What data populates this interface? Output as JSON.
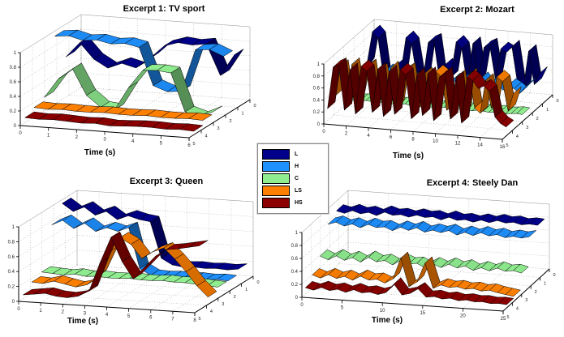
{
  "legend": {
    "entries": [
      {
        "label": "L",
        "color": "#00008B"
      },
      {
        "label": "H",
        "color": "#1E90FF"
      },
      {
        "label": "C",
        "color": "#90EE90"
      },
      {
        "label": "LS",
        "color": "#FF8000"
      },
      {
        "label": "HS",
        "color": "#8B0000"
      }
    ]
  },
  "chart_data": [
    {
      "type": "ribbon3d",
      "title": "Excerpt 1: TV sport",
      "xlabel": "Time (s)",
      "xlim": [
        0,
        6
      ],
      "zlim": [
        0,
        1
      ],
      "x_ticks": [
        0,
        1,
        2,
        3,
        4,
        5,
        6
      ],
      "z_ticks": [
        0,
        0.2,
        0.4,
        0.6,
        0.8,
        1
      ],
      "depth_ticks": [
        0,
        1,
        2,
        3,
        4,
        5
      ],
      "series": [
        {
          "name": "L",
          "values": [
            0.55,
            0.76,
            0.55,
            0.44,
            0.52,
            0.47,
            0.62,
            0.8,
            0.86,
            0.84,
            0.87,
            0.45,
            0.75
          ]
        },
        {
          "name": "H",
          "values": [
            0.93,
            0.95,
            0.9,
            0.92,
            0.88,
            0.9,
            0.86,
            0.35,
            0.28,
            0.3,
            0.88,
            0.9,
            0.82
          ]
        },
        {
          "name": "C",
          "values": [
            0.18,
            0.45,
            0.6,
            0.25,
            0.1,
            0.08,
            0.4,
            0.65,
            0.66,
            0.64,
            0.12,
            0.06,
            0.15
          ]
        },
        {
          "name": "LS",
          "values": [
            0.13,
            0.12,
            0.13,
            0.12,
            0.12,
            0.13,
            0.12,
            0.12,
            0.13,
            0.12,
            0.12,
            0.13,
            0.12
          ]
        },
        {
          "name": "HS",
          "values": [
            0.07,
            0.06,
            0.07,
            0.06,
            0.05,
            0.06,
            0.04,
            0.05,
            0.06,
            0.06,
            0.05,
            0.06,
            0.05
          ]
        }
      ]
    },
    {
      "type": "ribbon3d",
      "title": "Excerpt 2: Mozart",
      "xlabel": "Time (s)",
      "xlim": [
        0,
        16
      ],
      "zlim": [
        0,
        1
      ],
      "x_ticks": [
        0,
        2,
        4,
        6,
        8,
        10,
        12,
        14,
        16
      ],
      "z_ticks": [
        0,
        0.2,
        0.4,
        0.6,
        0.8,
        1
      ],
      "depth_ticks": [
        0,
        1,
        2,
        3,
        4,
        5
      ],
      "series": [
        {
          "name": "L",
          "values": [
            0.3,
            0.45,
            1.0,
            0.9,
            0.25,
            0.2,
            0.45,
            0.3,
            0.95,
            0.85,
            0.3,
            0.25,
            0.9,
            0.95,
            0.3,
            0.55,
            0.35,
            0.95,
            0.85,
            0.25,
            0.95,
            0.35,
            0.9,
            0.95,
            0.4,
            0.9,
            0.85,
            0.95,
            0.35,
            0.25,
            0.9,
            0.35,
            0.55
          ]
        },
        {
          "name": "H",
          "values": [
            0.45,
            0.38,
            0.5,
            0.35,
            0.45,
            0.4,
            0.52,
            0.33,
            0.46,
            0.5,
            0.38,
            0.45,
            0.33,
            0.5,
            0.44,
            0.38,
            0.52,
            0.35,
            0.46,
            0.4,
            0.5,
            0.44,
            0.35,
            0.52,
            0.4,
            0.46,
            0.5,
            0.36,
            0.45,
            0.4,
            0.33,
            0.45,
            0.52
          ]
        },
        {
          "name": "C",
          "values": [
            0.12,
            0.13,
            0.11,
            0.12,
            0.13,
            0.12,
            0.11,
            0.13,
            0.12,
            0.11,
            0.12,
            0.13,
            0.11,
            0.12,
            0.13,
            0.12,
            0.11,
            0.12,
            0.13,
            0.11,
            0.12,
            0.13,
            0.12,
            0.11,
            0.13,
            0.12,
            0.11,
            0.12,
            0.13,
            0.11,
            0.12,
            0.13,
            0.12
          ]
        },
        {
          "name": "LS",
          "values": [
            0.3,
            0.8,
            0.2,
            0.85,
            0.3,
            0.78,
            0.85,
            0.22,
            0.8,
            0.32,
            0.85,
            0.2,
            0.78,
            0.85,
            0.3,
            0.22,
            0.8,
            0.3,
            0.85,
            0.78,
            0.22,
            0.32,
            0.8,
            0.2,
            0.85,
            0.3,
            0.22,
            0.78,
            0.32,
            0.85,
            0.78,
            0.3,
            0.6
          ]
        },
        {
          "name": "HS",
          "values": [
            0.2,
            0.9,
            0.95,
            0.2,
            0.88,
            0.15,
            0.95,
            0.88,
            0.2,
            0.93,
            0.15,
            0.9,
            0.2,
            0.95,
            0.88,
            0.15,
            0.9,
            0.22,
            0.93,
            0.15,
            0.88,
            0.95,
            0.2,
            0.9,
            0.15,
            0.93,
            0.88,
            0.75,
            0.8,
            0.72,
            0.3,
            0.2,
            0.15
          ]
        }
      ]
    },
    {
      "type": "ribbon3d",
      "title": "Excerpt 3: Queen",
      "xlabel": "Time (s)",
      "xlim": [
        0,
        8
      ],
      "zlim": [
        0,
        1
      ],
      "x_ticks": [
        0,
        1,
        2,
        3,
        4,
        5,
        6,
        7,
        8
      ],
      "z_ticks": [
        0,
        0.2,
        0.4,
        0.6,
        0.8,
        1
      ],
      "depth_ticks": [
        0,
        1,
        2,
        3,
        4,
        5
      ],
      "series": [
        {
          "name": "L",
          "values": [
            0.95,
            0.85,
            0.92,
            0.82,
            0.88,
            0.78,
            0.84,
            0.8,
            0.78,
            0.3,
            0.22,
            0.2,
            0.21,
            0.2,
            0.21,
            0.2,
            0.22
          ]
        },
        {
          "name": "H",
          "values": [
            0.75,
            0.82,
            0.72,
            0.8,
            0.7,
            0.76,
            0.72,
            0.78,
            0.24,
            0.16,
            0.15,
            0.16,
            0.15,
            0.16,
            0.15,
            0.16,
            0.15
          ]
        },
        {
          "name": "C",
          "values": [
            0.2,
            0.19,
            0.18,
            0.2,
            0.18,
            0.19,
            0.18,
            0.18,
            0.19,
            0.18,
            0.18,
            0.19,
            0.18,
            0.18,
            0.17,
            0.16,
            0.15
          ]
        },
        {
          "name": "LS",
          "values": [
            0.15,
            0.14,
            0.18,
            0.15,
            0.12,
            0.16,
            0.3,
            0.62,
            0.82,
            0.74,
            0.56,
            0.66,
            0.72,
            0.58,
            0.42,
            0.24,
            0.1
          ]
        },
        {
          "name": "HS",
          "values": [
            0.05,
            0.07,
            0.09,
            0.06,
            0.05,
            0.08,
            0.16,
            0.55,
            0.9,
            0.58,
            0.36,
            0.52,
            0.68,
            0.78,
            0.8,
            0.83,
            0.86
          ]
        }
      ]
    },
    {
      "type": "ribbon3d",
      "title": "Excerpt 4: Steely Dan",
      "xlabel": "Time (s)",
      "xlim": [
        0,
        25
      ],
      "zlim": [
        0,
        1
      ],
      "x_ticks": [
        0,
        5,
        10,
        15,
        20,
        25
      ],
      "z_ticks": [
        0,
        0.2,
        0.4,
        0.6,
        0.8,
        1
      ],
      "depth_ticks": [
        0,
        1,
        2,
        3,
        4,
        5
      ],
      "series": [
        {
          "name": "L",
          "values": [
            0.85,
            0.82,
            0.87,
            0.83,
            0.86,
            0.82,
            0.88,
            0.84,
            0.86,
            0.83,
            0.87,
            0.84,
            0.86,
            0.82,
            0.87,
            0.83,
            0.85,
            0.82,
            0.86,
            0.83,
            0.87,
            0.84,
            0.86,
            0.83,
            0.85,
            0.84
          ]
        },
        {
          "name": "H",
          "values": [
            0.76,
            0.8,
            0.75,
            0.79,
            0.74,
            0.8,
            0.76,
            0.78,
            0.73,
            0.79,
            0.75,
            0.8,
            0.74,
            0.78,
            0.75,
            0.79,
            0.73,
            0.78,
            0.74,
            0.79,
            0.75,
            0.78,
            0.74,
            0.77,
            0.75,
            0.78
          ]
        },
        {
          "name": "C",
          "values": [
            0.38,
            0.33,
            0.4,
            0.34,
            0.39,
            0.33,
            0.41,
            0.35,
            0.38,
            0.32,
            0.4,
            0.35,
            0.37,
            0.31,
            0.38,
            0.33,
            0.39,
            0.34,
            0.38,
            0.32,
            0.37,
            0.33,
            0.38,
            0.34,
            0.36,
            0.33
          ]
        },
        {
          "name": "LS",
          "values": [
            0.2,
            0.16,
            0.22,
            0.17,
            0.21,
            0.16,
            0.23,
            0.18,
            0.2,
            0.15,
            0.22,
            0.55,
            0.12,
            0.2,
            0.5,
            0.12,
            0.18,
            0.15,
            0.17,
            0.14,
            0.16,
            0.13,
            0.15,
            0.12,
            0.1,
            0.08
          ]
        },
        {
          "name": "HS",
          "values": [
            0.1,
            0.07,
            0.12,
            0.08,
            0.11,
            0.07,
            0.12,
            0.08,
            0.1,
            0.07,
            0.11,
            0.25,
            0.09,
            0.12,
            0.2,
            0.08,
            0.1,
            0.07,
            0.09,
            0.06,
            0.08,
            0.06,
            0.07,
            0.05,
            0.06,
            0.05
          ]
        }
      ]
    }
  ]
}
